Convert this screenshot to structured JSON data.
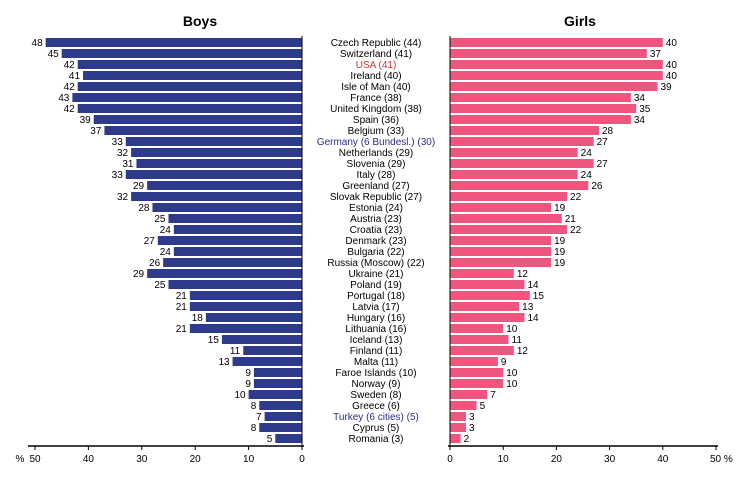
{
  "chart_data": {
    "type": "bar",
    "orientation": "horizontal-mirrored",
    "panels": [
      {
        "title": "Boys",
        "xlim": [
          0,
          50
        ],
        "direction": "right-to-left"
      },
      {
        "title": "Girls",
        "xlim": [
          0,
          50
        ],
        "direction": "left-to-right"
      }
    ],
    "axis_ticks": {
      "boys": [
        "%",
        "50",
        "40",
        "30",
        "20",
        "10",
        "0"
      ],
      "girls": [
        "0",
        "10",
        "20",
        "30",
        "40",
        "50 %"
      ]
    },
    "countries": [
      {
        "label": "Czech Republic (44)",
        "boys": 48,
        "girls": 40,
        "label_color": "#000000"
      },
      {
        "label": "Switzerland (41)",
        "boys": 45,
        "girls": 37,
        "label_color": "#000000"
      },
      {
        "label": "USA (41)",
        "boys": 42,
        "girls": 40,
        "label_color": "#cc3333"
      },
      {
        "label": "Ireland (40)",
        "boys": 41,
        "girls": 40,
        "label_color": "#000000"
      },
      {
        "label": "Isle of Man (40)",
        "boys": 42,
        "girls": 39,
        "label_color": "#000000"
      },
      {
        "label": "France (38)",
        "boys": 43,
        "girls": 34,
        "label_color": "#000000"
      },
      {
        "label": "United Kingdom (38)",
        "boys": 42,
        "girls": 35,
        "label_color": "#000000"
      },
      {
        "label": "Spain (36)",
        "boys": 39,
        "girls": 34,
        "label_color": "#000000"
      },
      {
        "label": "Belgium (33)",
        "boys": 37,
        "girls": 28,
        "label_color": "#000000"
      },
      {
        "label": "Germany (6 Bundesl.) (30)",
        "boys": 33,
        "girls": 27,
        "label_color": "#2c2c8c"
      },
      {
        "label": "Netherlands (29)",
        "boys": 32,
        "girls": 24,
        "label_color": "#000000"
      },
      {
        "label": "Slovenia (29)",
        "boys": 31,
        "girls": 27,
        "label_color": "#000000"
      },
      {
        "label": "Italy (28)",
        "boys": 33,
        "girls": 24,
        "label_color": "#000000"
      },
      {
        "label": "Greenland (27)",
        "boys": 29,
        "girls": 26,
        "label_color": "#000000"
      },
      {
        "label": "Slovak Republic (27)",
        "boys": 32,
        "girls": 22,
        "label_color": "#000000"
      },
      {
        "label": "Estonia (24)",
        "boys": 28,
        "girls": 19,
        "label_color": "#000000"
      },
      {
        "label": "Austria (23)",
        "boys": 25,
        "girls": 21,
        "label_color": "#000000"
      },
      {
        "label": "Croatia (23)",
        "boys": 24,
        "girls": 22,
        "label_color": "#000000"
      },
      {
        "label": "Denmark (23)",
        "boys": 27,
        "girls": 19,
        "label_color": "#000000"
      },
      {
        "label": "Bulgaria (22)",
        "boys": 24,
        "girls": 19,
        "label_color": "#000000"
      },
      {
        "label": "Russia (Moscow) (22)",
        "boys": 26,
        "girls": 19,
        "label_color": "#000000"
      },
      {
        "label": "Ukraine (21)",
        "boys": 29,
        "girls": 12,
        "label_color": "#000000"
      },
      {
        "label": "Poland (19)",
        "boys": 25,
        "girls": 14,
        "label_color": "#000000"
      },
      {
        "label": "Portugal (18)",
        "boys": 21,
        "girls": 15,
        "label_color": "#000000"
      },
      {
        "label": "Latvia (17)",
        "boys": 21,
        "girls": 13,
        "label_color": "#000000"
      },
      {
        "label": "Hungary (16)",
        "boys": 18,
        "girls": 14,
        "label_color": "#000000"
      },
      {
        "label": "Lithuania (16)",
        "boys": 21,
        "girls": 10,
        "label_color": "#000000"
      },
      {
        "label": "Iceland (13)",
        "boys": 15,
        "girls": 11,
        "label_color": "#000000"
      },
      {
        "label": "Finland (11)",
        "boys": 11,
        "girls": 12,
        "label_color": "#000000"
      },
      {
        "label": "Malta (11)",
        "boys": 13,
        "girls": 9,
        "label_color": "#000000"
      },
      {
        "label": "Faroe Islands (10)",
        "boys": 9,
        "girls": 10,
        "label_color": "#000000"
      },
      {
        "label": "Norway (9)",
        "boys": 9,
        "girls": 10,
        "label_color": "#000000"
      },
      {
        "label": "Sweden (8)",
        "boys": 10,
        "girls": 7,
        "label_color": "#000000"
      },
      {
        "label": "Greece (6)",
        "boys": 8,
        "girls": 5,
        "label_color": "#000000"
      },
      {
        "label": "Turkey (6 cities) (5)",
        "boys": 7,
        "girls": 3,
        "label_color": "#2c2c8c"
      },
      {
        "label": "Cyprus (5)",
        "boys": 8,
        "girls": 3,
        "label_color": "#000000"
      },
      {
        "label": "Romania (3)",
        "boys": 5,
        "girls": 2,
        "label_color": "#000000"
      }
    ],
    "colors": {
      "boys_bar": "#2e3a8c",
      "girls_bar": "#f0557e",
      "text": "#000000",
      "axis": "#000000"
    }
  }
}
